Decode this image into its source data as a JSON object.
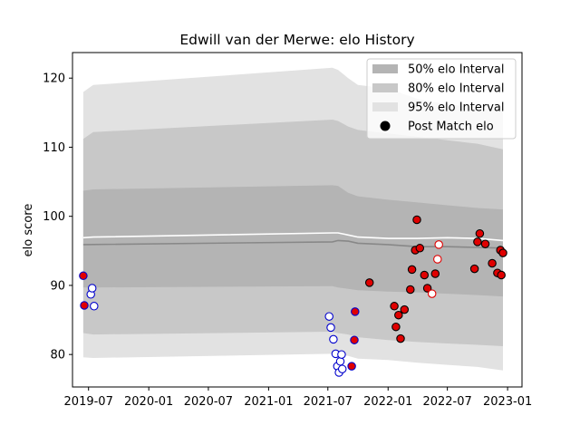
{
  "chart_data": {
    "type": "scatter",
    "title": "Edwill van der Merwe: elo History",
    "xlabel": "",
    "ylabel": "elo score",
    "xlim": [
      "2019-05-13",
      "2023-02-14"
    ],
    "ylim": [
      75.3,
      123.7
    ],
    "x_ticks": [
      "2019-07",
      "2020-01",
      "2020-07",
      "2021-01",
      "2021-07",
      "2022-01",
      "2022-07",
      "2023-01"
    ],
    "y_ticks": [
      80,
      90,
      100,
      110,
      120
    ],
    "grid": false,
    "legend_position": "top-right",
    "legend": [
      {
        "label": "50% elo Interval",
        "kind": "band",
        "color": "#b4b4b4"
      },
      {
        "label": "80% elo Interval",
        "kind": "band",
        "color": "#c8c8c8"
      },
      {
        "label": "95% elo Interval",
        "kind": "band",
        "color": "#e2e2e2"
      },
      {
        "label": "Post Match elo",
        "kind": "marker",
        "color": "#000000"
      }
    ],
    "band_dates": [
      "2019-06-15",
      "2019-07-15",
      "2021-07-15",
      "2021-08-01",
      "2021-09-01",
      "2021-10-01",
      "2022-01-01",
      "2022-04-01",
      "2022-07-01",
      "2022-10-01",
      "2022-12-18"
    ],
    "bands": {
      "p95": {
        "lower": [
          79.6,
          79.5,
          80.1,
          80.1,
          79.8,
          79.4,
          79.2,
          78.8,
          78.5,
          78.2,
          77.7
        ],
        "upper": [
          118.0,
          119.0,
          121.5,
          121.2,
          120.0,
          119.0,
          118.5,
          117.0,
          116.2,
          115.7,
          115.3
        ]
      },
      "p80": {
        "lower": [
          83.1,
          82.9,
          83.3,
          83.1,
          82.9,
          82.5,
          82.1,
          81.8,
          81.6,
          81.4,
          81.2
        ],
        "upper": [
          111.2,
          112.2,
          114.0,
          113.8,
          113.0,
          112.5,
          112.0,
          111.5,
          111.0,
          110.5,
          109.7
        ]
      },
      "p50": {
        "lower": [
          89.7,
          89.7,
          89.9,
          89.7,
          89.5,
          89.3,
          89.1,
          89.0,
          88.8,
          88.6,
          88.4
        ],
        "upper": [
          103.7,
          103.9,
          104.5,
          104.4,
          103.4,
          102.9,
          102.4,
          102.0,
          101.6,
          101.2,
          101.0
        ]
      }
    },
    "lines": [
      {
        "color": "#888888",
        "dates": [
          "2019-06-15",
          "2021-07-15",
          "2021-08-01",
          "2021-09-01",
          "2021-10-01",
          "2022-01-01",
          "2022-04-01",
          "2022-07-01",
          "2022-10-01",
          "2022-12-18"
        ],
        "values": [
          95.9,
          96.3,
          96.5,
          96.4,
          96.1,
          95.9,
          95.6,
          95.6,
          95.5,
          95.4
        ]
      },
      {
        "color": "#ffffff",
        "dates": [
          "2019-06-15",
          "2019-07-15",
          "2021-07-15",
          "2021-08-01",
          "2021-09-01",
          "2021-10-01",
          "2022-01-01",
          "2022-04-01",
          "2022-07-01",
          "2022-10-01",
          "2022-12-18"
        ],
        "values": [
          96.9,
          97.0,
          97.6,
          97.6,
          97.3,
          97.0,
          96.8,
          96.8,
          96.9,
          96.8,
          96.5
        ]
      }
    ],
    "series": [
      {
        "face": "#e00000",
        "edge": "#0000cc",
        "points": [
          [
            "2019-06-15",
            91.4
          ],
          [
            "2019-06-18",
            87.1
          ],
          [
            "2021-09-12",
            78.3
          ],
          [
            "2021-09-20",
            82.1
          ],
          [
            "2021-09-22",
            86.2
          ]
        ]
      },
      {
        "face": "#ffffff",
        "edge": "#0000cc",
        "points": [
          [
            "2019-07-08",
            88.7
          ],
          [
            "2019-07-12",
            89.6
          ],
          [
            "2019-07-18",
            87.0
          ],
          [
            "2021-07-05",
            85.5
          ],
          [
            "2021-07-10",
            83.9
          ],
          [
            "2021-07-18",
            82.2
          ],
          [
            "2021-07-25",
            80.1
          ],
          [
            "2021-07-30",
            78.3
          ],
          [
            "2021-08-04",
            77.4
          ],
          [
            "2021-08-08",
            79.0
          ],
          [
            "2021-08-12",
            80.0
          ],
          [
            "2021-08-14",
            77.9
          ]
        ]
      },
      {
        "face": "#e00000",
        "edge": "#000000",
        "points": [
          [
            "2021-11-05",
            90.4
          ],
          [
            "2022-01-20",
            87.0
          ],
          [
            "2022-01-25",
            84.0
          ],
          [
            "2022-02-02",
            85.7
          ],
          [
            "2022-02-08",
            82.3
          ],
          [
            "2022-02-20",
            86.5
          ],
          [
            "2022-03-10",
            89.4
          ],
          [
            "2022-03-15",
            92.3
          ],
          [
            "2022-03-25",
            95.1
          ],
          [
            "2022-03-30",
            99.5
          ],
          [
            "2022-04-08",
            95.4
          ],
          [
            "2022-04-22",
            91.5
          ],
          [
            "2022-05-01",
            89.6
          ],
          [
            "2022-05-25",
            91.7
          ],
          [
            "2022-09-22",
            92.4
          ],
          [
            "2022-10-01",
            96.3
          ],
          [
            "2022-10-08",
            97.5
          ],
          [
            "2022-10-25",
            96.0
          ],
          [
            "2022-11-15",
            93.2
          ],
          [
            "2022-12-01",
            91.8
          ],
          [
            "2022-12-10",
            95.1
          ],
          [
            "2022-12-13",
            91.5
          ],
          [
            "2022-12-18",
            94.7
          ]
        ]
      },
      {
        "face": "#ffffff",
        "edge": "#e00000",
        "points": [
          [
            "2022-05-15",
            88.8
          ],
          [
            "2022-06-01",
            93.8
          ],
          [
            "2022-06-05",
            95.9
          ]
        ]
      }
    ]
  }
}
